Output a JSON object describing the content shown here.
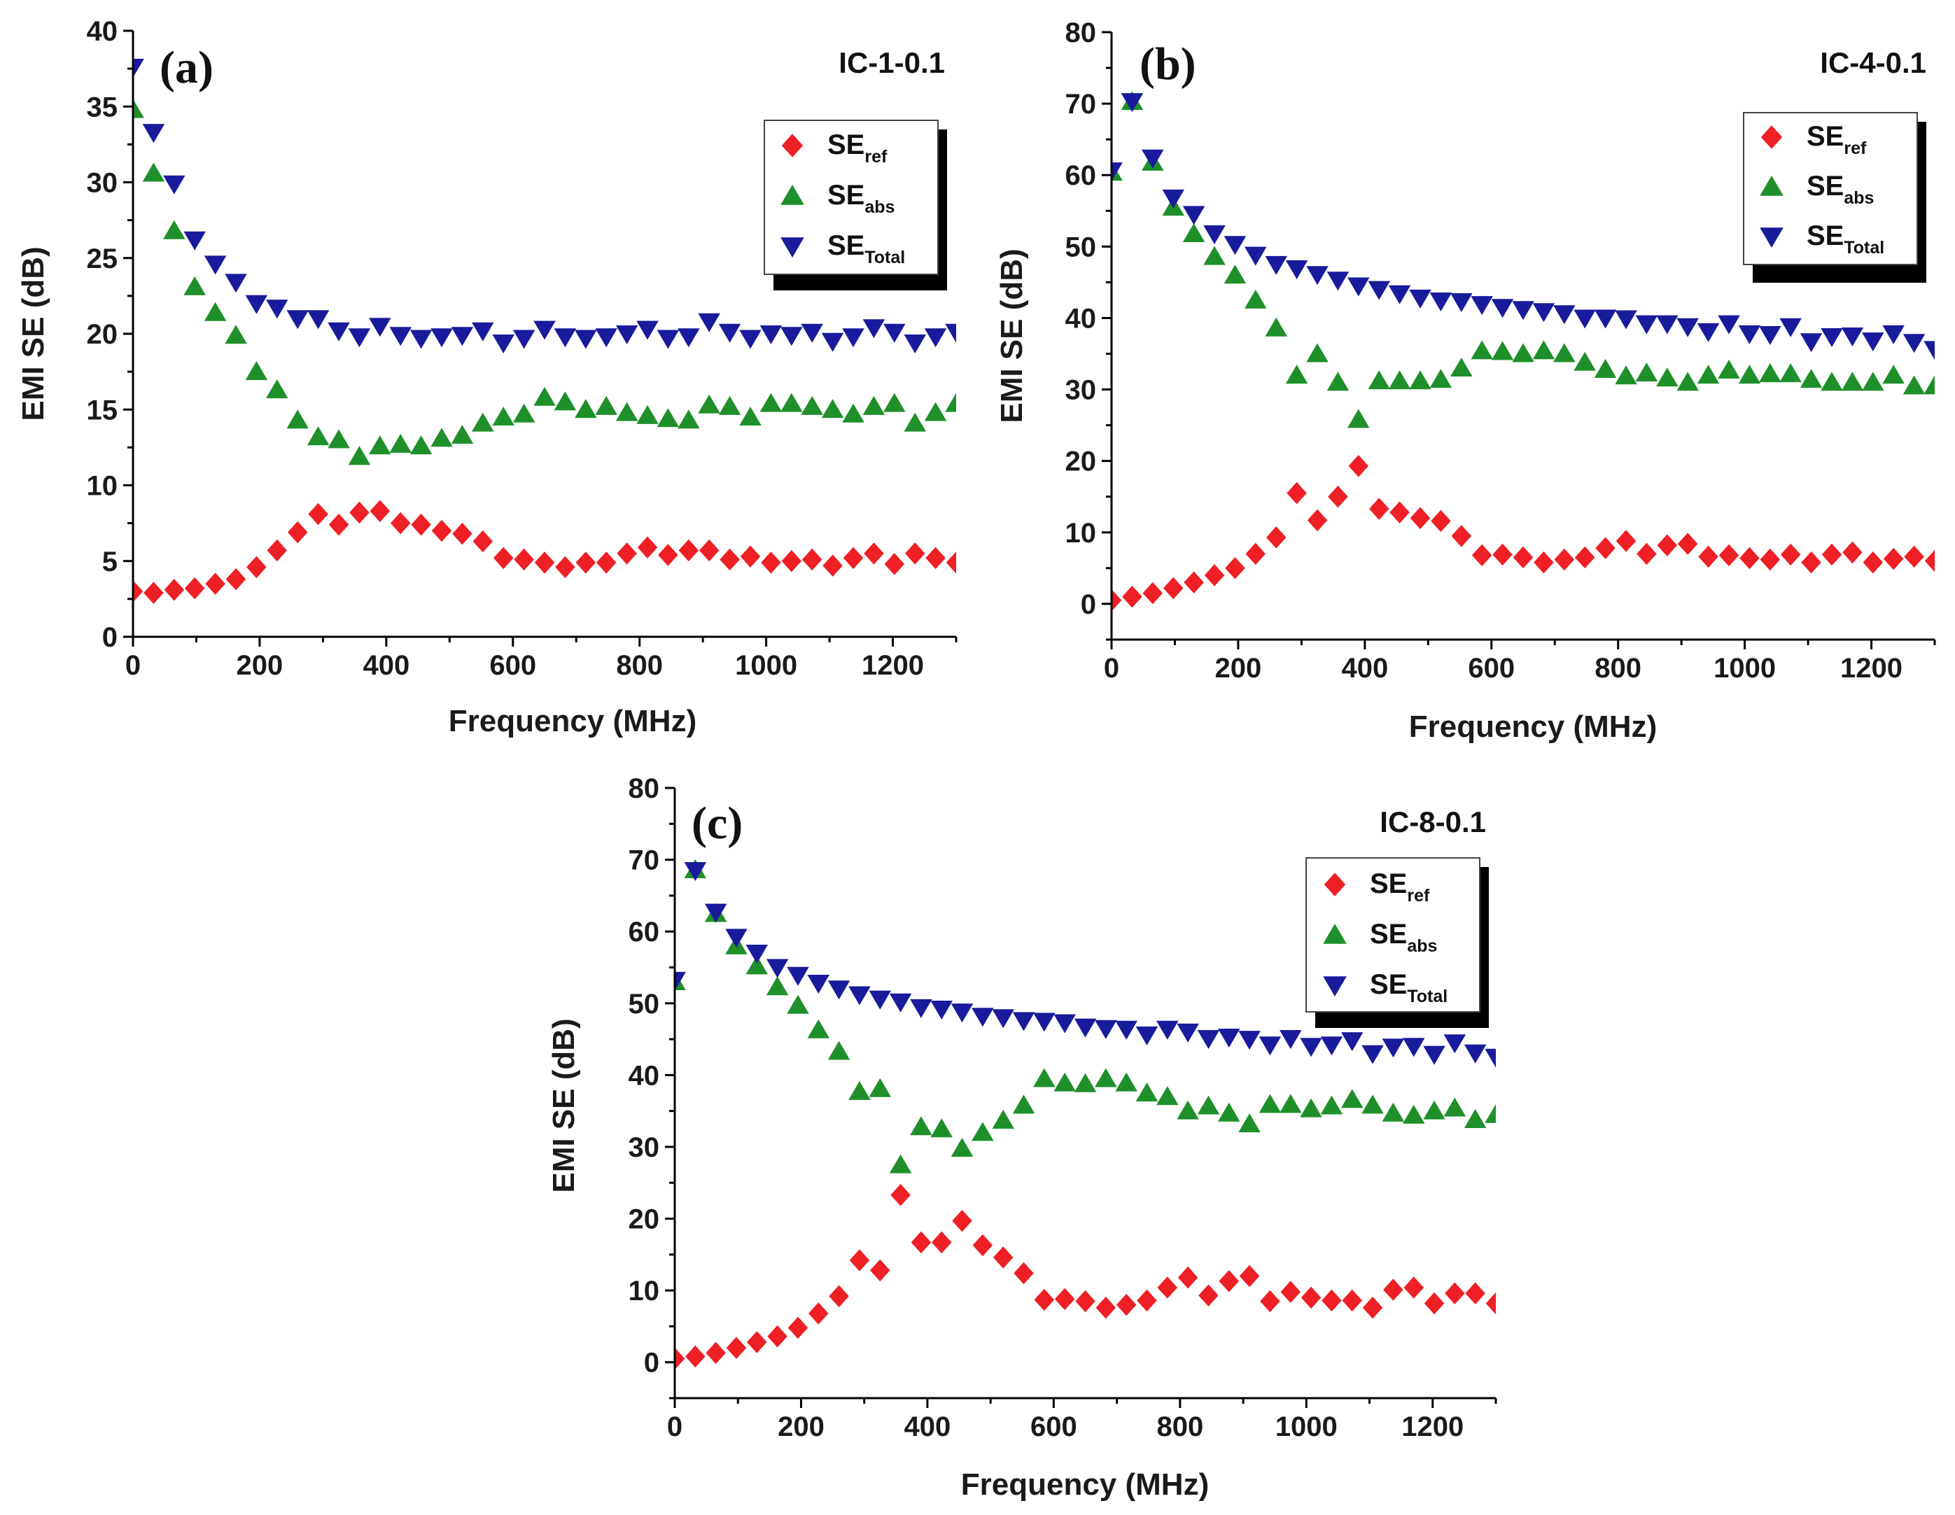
{
  "figure": {
    "xlabel": "Frequency (MHz)",
    "ylabel": "EMI SE (dB)"
  },
  "colors": {
    "SE_ref": "#ee1f25",
    "SE_abs": "#1f8f2a",
    "SE_Total": "#1a1a9c",
    "axis": "#000000"
  },
  "markers": {
    "SE_ref": "diamond",
    "SE_abs": "triangle-up",
    "SE_Total": "triangle-down"
  },
  "chart_data": [
    {
      "type": "scatter",
      "panel": "(a)",
      "title": "IC-1-0.1",
      "xlabel": "Frequency (MHz)",
      "ylabel": "EMI SE (dB)",
      "xlim": [
        0,
        1300
      ],
      "ylim": [
        0,
        40
      ],
      "xticks": [
        0,
        200,
        400,
        600,
        800,
        1000,
        1200
      ],
      "yticks": [
        0,
        5,
        10,
        15,
        20,
        25,
        30,
        35,
        40
      ],
      "legend_position": "top-right",
      "x": [
        0,
        32.5,
        65,
        97.5,
        130,
        162.5,
        195,
        227.5,
        260,
        292.5,
        325,
        357.5,
        390,
        422.5,
        455,
        487.5,
        520,
        552.5,
        585,
        617.5,
        650,
        682.5,
        715,
        747.5,
        780,
        812.5,
        845,
        877.5,
        910,
        942.5,
        975,
        1007.5,
        1040,
        1072.5,
        1105,
        1137.5,
        1170,
        1202.5,
        1235,
        1267.5,
        1300
      ],
      "series": [
        {
          "key": "SE_ref",
          "name": "SE",
          "sub": "ref",
          "values": [
            3.0,
            2.9,
            3.1,
            3.2,
            3.5,
            3.8,
            4.6,
            5.7,
            6.9,
            8.1,
            7.4,
            8.2,
            8.3,
            7.5,
            7.4,
            7.0,
            6.8,
            6.3,
            5.2,
            5.1,
            4.9,
            4.6,
            4.9,
            4.9,
            5.5,
            5.9,
            5.4,
            5.7,
            5.7,
            5.1,
            5.3,
            4.9,
            5.0,
            5.1,
            4.7,
            5.2,
            5.5,
            4.8,
            5.5,
            5.2,
            4.9
          ]
        },
        {
          "key": "SE_abs",
          "name": "SE",
          "sub": "abs",
          "values": [
            34.8,
            30.6,
            26.8,
            23.1,
            21.4,
            19.9,
            17.5,
            16.3,
            14.3,
            13.2,
            13.0,
            11.9,
            12.6,
            12.7,
            12.6,
            13.1,
            13.3,
            14.1,
            14.5,
            14.7,
            15.8,
            15.5,
            15.0,
            15.2,
            14.8,
            14.6,
            14.4,
            14.3,
            15.3,
            15.2,
            14.5,
            15.4,
            15.4,
            15.2,
            15.0,
            14.7,
            15.2,
            15.4,
            14.1,
            14.8,
            15.4
          ]
        },
        {
          "key": "SE_Total",
          "name": "SE",
          "sub": "Total",
          "values": [
            37.6,
            33.3,
            29.9,
            26.2,
            24.6,
            23.4,
            22.0,
            21.7,
            21.0,
            21.0,
            20.2,
            19.8,
            20.5,
            19.9,
            19.7,
            19.8,
            19.9,
            20.2,
            19.4,
            19.7,
            20.3,
            19.8,
            19.7,
            19.8,
            20.0,
            20.3,
            19.7,
            19.8,
            20.8,
            20.1,
            19.7,
            20.0,
            19.9,
            20.1,
            19.5,
            19.8,
            20.4,
            20.1,
            19.4,
            19.8,
            20.1
          ]
        }
      ]
    },
    {
      "type": "scatter",
      "panel": "(b)",
      "title": "IC-4-0.1",
      "xlabel": "Frequency (MHz)",
      "ylabel": "EMI SE (dB)",
      "xlim": [
        0,
        1300
      ],
      "ylim": [
        -5,
        80
      ],
      "xticks": [
        0,
        200,
        400,
        600,
        800,
        1000,
        1200
      ],
      "yticks": [
        0,
        10,
        20,
        30,
        40,
        50,
        60,
        70,
        80
      ],
      "legend_position": "top-right",
      "x": [
        0,
        32.5,
        65,
        97.5,
        130,
        162.5,
        195,
        227.5,
        260,
        292.5,
        325,
        357.5,
        390,
        422.5,
        455,
        487.5,
        520,
        552.5,
        585,
        617.5,
        650,
        682.5,
        715,
        747.5,
        780,
        812.5,
        845,
        877.5,
        910,
        942.5,
        975,
        1007.5,
        1040,
        1072.5,
        1105,
        1137.5,
        1170,
        1202.5,
        1235,
        1267.5,
        1300
      ],
      "series": [
        {
          "key": "SE_ref",
          "name": "SE",
          "sub": "ref",
          "values": [
            0.5,
            1.0,
            1.5,
            2.2,
            3.0,
            4.0,
            5.0,
            7.0,
            9.3,
            15.5,
            11.7,
            15.0,
            19.3,
            13.3,
            12.8,
            12.0,
            11.6,
            9.5,
            6.8,
            6.9,
            6.5,
            5.8,
            6.2,
            6.5,
            7.8,
            8.8,
            7.0,
            8.2,
            8.4,
            6.6,
            6.8,
            6.4,
            6.2,
            6.9,
            5.8,
            6.9,
            7.2,
            5.8,
            6.3,
            6.6,
            6.0
          ]
        },
        {
          "key": "SE_abs",
          "name": "SE",
          "sub": "abs",
          "values": [
            60.4,
            70.3,
            61.8,
            55.5,
            51.8,
            48.6,
            46.0,
            42.5,
            38.6,
            32.0,
            35.0,
            31.0,
            25.8,
            31.2,
            31.2,
            31.2,
            31.4,
            33.0,
            35.4,
            35.3,
            35.0,
            35.4,
            35.0,
            33.8,
            32.8,
            31.9,
            32.3,
            31.6,
            31.0,
            32.0,
            32.7,
            32.0,
            32.2,
            32.2,
            31.4,
            31.0,
            31.0,
            31.0,
            32.0,
            30.5,
            30.5
          ]
        },
        {
          "key": "SE_Total",
          "name": "SE",
          "sub": "Total",
          "values": [
            60.6,
            70.3,
            62.4,
            56.8,
            54.5,
            51.8,
            50.3,
            48.8,
            47.5,
            46.9,
            46.1,
            45.3,
            44.5,
            44.0,
            43.4,
            42.8,
            42.4,
            42.3,
            41.9,
            41.5,
            41.2,
            40.9,
            40.6,
            40.0,
            40.0,
            39.9,
            39.2,
            39.2,
            38.8,
            38.1,
            39.2,
            37.8,
            37.7,
            38.8,
            36.7,
            37.4,
            37.5,
            36.8,
            37.8,
            36.6,
            35.6
          ]
        }
      ]
    },
    {
      "type": "scatter",
      "panel": "(c)",
      "title": "IC-8-0.1",
      "xlabel": "Frequency (MHz)",
      "ylabel": "EMI SE (dB)",
      "xlim": [
        0,
        1300
      ],
      "ylim": [
        -5,
        80
      ],
      "xticks": [
        0,
        200,
        400,
        600,
        800,
        1000,
        1200
      ],
      "yticks": [
        0,
        10,
        20,
        30,
        40,
        50,
        60,
        70,
        80
      ],
      "legend_position": "top-right",
      "x": [
        0,
        32.5,
        65,
        97.5,
        130,
        162.5,
        195,
        227.5,
        260,
        292.5,
        325,
        357.5,
        390,
        422.5,
        455,
        487.5,
        520,
        552.5,
        585,
        617.5,
        650,
        682.5,
        715,
        747.5,
        780,
        812.5,
        845,
        877.5,
        910,
        942.5,
        975,
        1007.5,
        1040,
        1072.5,
        1105,
        1137.5,
        1170,
        1202.5,
        1235,
        1267.5,
        1300
      ],
      "series": [
        {
          "key": "SE_ref",
          "name": "SE",
          "sub": "ref",
          "values": [
            0.5,
            0.8,
            1.3,
            2.0,
            2.8,
            3.6,
            4.8,
            6.8,
            9.2,
            14.2,
            12.8,
            23.3,
            16.7,
            16.7,
            19.7,
            16.3,
            14.6,
            12.4,
            8.7,
            8.8,
            8.5,
            7.6,
            8.0,
            8.6,
            10.4,
            11.8,
            9.3,
            11.3,
            12.0,
            8.5,
            9.8,
            9.0,
            8.6,
            8.6,
            7.6,
            10.1,
            10.4,
            8.2,
            9.6,
            9.6,
            8.2
          ]
        },
        {
          "key": "SE_abs",
          "name": "SE",
          "sub": "abs",
          "values": [
            53.0,
            68.6,
            62.5,
            58.0,
            55.2,
            52.3,
            49.7,
            46.3,
            43.3,
            37.7,
            38.1,
            27.5,
            32.8,
            32.5,
            29.8,
            32.0,
            33.7,
            35.8,
            39.5,
            38.9,
            38.8,
            39.5,
            38.9,
            37.5,
            37.0,
            35.0,
            35.7,
            34.7,
            33.2,
            35.9,
            35.9,
            35.3,
            35.7,
            36.6,
            35.8,
            34.7,
            34.4,
            35.0,
            35.4,
            33.8,
            34.5
          ]
        },
        {
          "key": "SE_Total",
          "name": "SE",
          "sub": "Total",
          "values": [
            53.2,
            68.5,
            62.7,
            59.2,
            57.0,
            55.0,
            53.9,
            52.8,
            52.0,
            51.2,
            50.6,
            50.2,
            49.4,
            49.2,
            48.8,
            48.2,
            48.0,
            47.6,
            47.5,
            47.3,
            46.7,
            46.5,
            46.4,
            45.6,
            46.4,
            46.0,
            45.1,
            45.3,
            45.0,
            44.2,
            45.1,
            44.0,
            44.2,
            44.8,
            43.0,
            43.9,
            44.0,
            42.9,
            44.5,
            43.1,
            42.5
          ]
        }
      ]
    }
  ]
}
